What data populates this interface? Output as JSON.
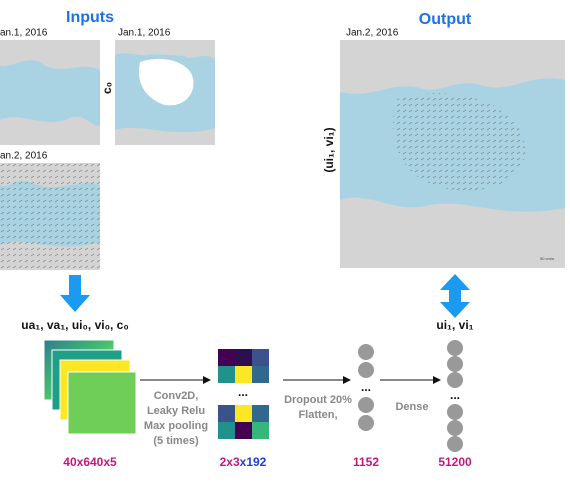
{
  "header": {
    "inputs": "Inputs",
    "output": "Output"
  },
  "maps": {
    "input_1_date": "an.1, 2016",
    "input_2_date": "Jan.1, 2016",
    "input_2_label": "c₀",
    "input_3_date": "an.2, 2016",
    "output_date": "Jan.2, 2016",
    "output_label": "(ui₁, vi₁)",
    "scale": "90 cm/s"
  },
  "network": {
    "input_vars": "ua₁, va₁, ui₀, vi₀, c₀",
    "output_vars": "ui₁, vi₁",
    "conv_lines": [
      "Conv2D,",
      "Leaky Relu",
      "Max pooling",
      "(5 times)"
    ],
    "flatten_lines": [
      "Dropout 20%",
      "Flatten,"
    ],
    "dense": "Dense",
    "ellipsis": "...",
    "sizes": {
      "input": "40x640x5",
      "conv_a": "2x3",
      "conv_b": "x192",
      "flat": "1152",
      "dense": "51200"
    }
  }
}
